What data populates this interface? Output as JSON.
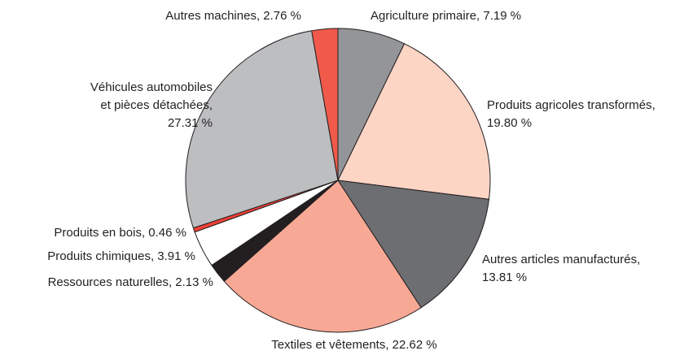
{
  "chart_data": {
    "type": "pie",
    "values": [
      7.19,
      19.8,
      13.81,
      22.62,
      2.13,
      3.91,
      0.46,
      27.31,
      2.76
    ],
    "value_labels": [
      [
        "Agriculture primaire, 7.19 %"
      ],
      [
        "Produits agricoles transformés,",
        "19.80 %"
      ],
      [
        "Autres articles manufacturés,",
        "13.81 %"
      ],
      [
        "Textiles et vêtements, 22.62 %"
      ],
      [
        "Ressources naturelles, 2.13 %"
      ],
      [
        "Produits chimiques, 3.91 %"
      ],
      [
        "Produits en bois, 0.46 %"
      ],
      [
        "Véhicules automobiles",
        "et pièces détachées,",
        "27.31 %"
      ],
      [
        "Autres machines, 2.76 %"
      ]
    ],
    "colors": [
      "#939598",
      "#fdd5c5",
      "#6d6e71",
      "#f7a995",
      "#231f20",
      "#ffffff",
      "#ef4136",
      "#bcbec0",
      "#f15a4a"
    ]
  }
}
